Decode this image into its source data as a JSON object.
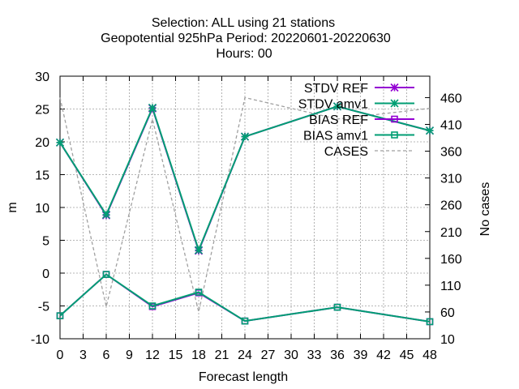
{
  "title_lines": [
    "Selection: ALL using    21 stations",
    "Geopotential 925hPa   Period: 20220601-20220630",
    "Hours:  00"
  ],
  "chart_data": {
    "type": "line",
    "xlabel": "Forecast length",
    "ylabel": "m",
    "y2label": "No cases",
    "xlim": [
      0,
      48
    ],
    "ylim": [
      -10,
      30
    ],
    "y2lim": [
      10,
      500
    ],
    "xticks": [
      "0",
      "3",
      "6",
      "9",
      "12",
      "15",
      "18",
      "21",
      "24",
      "27",
      "30",
      "33",
      "36",
      "39",
      "42",
      "45",
      "48"
    ],
    "yticks": [
      "-10",
      "-5",
      "0",
      "5",
      "10",
      "15",
      "20",
      "25",
      "30"
    ],
    "y2ticks": [
      "10",
      "60",
      "110",
      "160",
      "210",
      "260",
      "310",
      "360",
      "410",
      "460"
    ],
    "grid": true,
    "legend_position": "top-right",
    "x": [
      0,
      6,
      12,
      18,
      24,
      36,
      48
    ],
    "series": [
      {
        "name": "STDV REF",
        "axis": "y1",
        "color": "#9400d3",
        "marker": "star",
        "dash": "solid",
        "values": [
          19.9,
          8.8,
          25.1,
          3.4,
          20.8,
          25.4,
          21.7
        ]
      },
      {
        "name": "STDV amv1",
        "axis": "y1",
        "color": "#009e73",
        "marker": "star",
        "dash": "solid",
        "values": [
          19.9,
          8.9,
          25.2,
          3.5,
          20.8,
          25.4,
          21.7
        ]
      },
      {
        "name": "BIAS REF",
        "axis": "y1",
        "color": "#9400d3",
        "marker": "square",
        "dash": "solid",
        "values": [
          -6.5,
          -0.2,
          -5.1,
          -3.0,
          -7.3,
          -5.2,
          -7.4
        ]
      },
      {
        "name": "BIAS amv1",
        "axis": "y1",
        "color": "#009e73",
        "marker": "square",
        "dash": "solid",
        "values": [
          -6.5,
          -0.2,
          -5.0,
          -2.9,
          -7.3,
          -5.2,
          -7.4
        ]
      },
      {
        "name": "CASES",
        "axis": "y2",
        "color": "#a0a0a0",
        "marker": "none",
        "dash": "dashed",
        "values": [
          460,
          70,
          420,
          60,
          460,
          420,
          440
        ]
      }
    ]
  }
}
